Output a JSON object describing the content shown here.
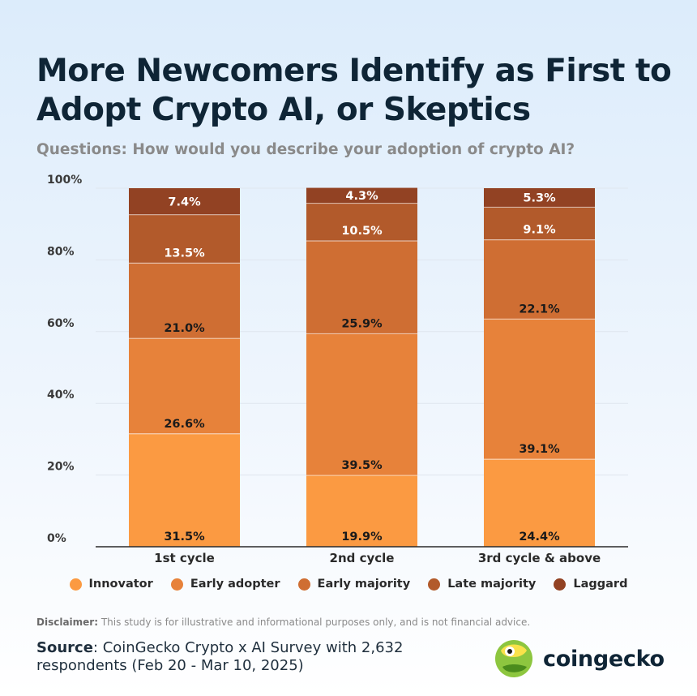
{
  "title": "More Newcomers Identify as First to Adopt Crypto AI, or Skeptics",
  "subtitle": "Questions: How would you describe your adoption of crypto AI?",
  "chart_data": {
    "type": "bar",
    "stacked": true,
    "categories": [
      "1st cycle",
      "2nd cycle",
      "3rd cycle & above"
    ],
    "series": [
      {
        "name": "Innovator",
        "color": "#fb9a42",
        "label_color": "#1a1a1a",
        "values": [
          31.5,
          19.9,
          24.4
        ]
      },
      {
        "name": "Early adopter",
        "color": "#e7823a",
        "label_color": "#1a1a1a",
        "values": [
          26.6,
          39.5,
          39.1
        ]
      },
      {
        "name": "Early majority",
        "color": "#cf6e33",
        "label_color": "#1a1a1a",
        "values": [
          21.0,
          25.9,
          22.1
        ]
      },
      {
        "name": "Late majority",
        "color": "#b25a2b",
        "label_color": "#ffffff",
        "values": [
          13.5,
          10.5,
          9.1
        ]
      },
      {
        "name": "Laggard",
        "color": "#924223",
        "label_color": "#ffffff",
        "values": [
          7.4,
          4.3,
          5.3
        ]
      }
    ],
    "value_labels": [
      [
        "31.5%",
        "19.9%",
        "24.4%"
      ],
      [
        "26.6%",
        "39.5%",
        "39.1%"
      ],
      [
        "21.0%",
        "25.9%",
        "22.1%"
      ],
      [
        "13.5%",
        "10.5%",
        "9.1%"
      ],
      [
        "7.4%",
        "4.3%",
        "5.3%"
      ]
    ],
    "y_ticks": [
      "0%",
      "20%",
      "40%",
      "60%",
      "80%",
      "100%"
    ],
    "ylim": [
      0,
      100
    ],
    "grid": true,
    "legend_position": "bottom"
  },
  "legend_labels": [
    "Innovator",
    "Early adopter",
    "Early majority",
    "Late majority",
    "Laggard"
  ],
  "legend_colors": [
    "#fb9a42",
    "#e7823a",
    "#cf6e33",
    "#b25a2b",
    "#924223"
  ],
  "disclaimer": {
    "label": "Disclaimer:",
    "text": " This study is for illustrative and informational purposes only, and is not financial advice."
  },
  "source": {
    "label": "Source",
    "text": ": CoinGecko Crypto x AI Survey with 2,632 respondents (Feb 20 - Mar 10, 2025)"
  },
  "brand": {
    "name": "coingecko",
    "logo_icon": "coingecko-gecko-logo-icon"
  }
}
